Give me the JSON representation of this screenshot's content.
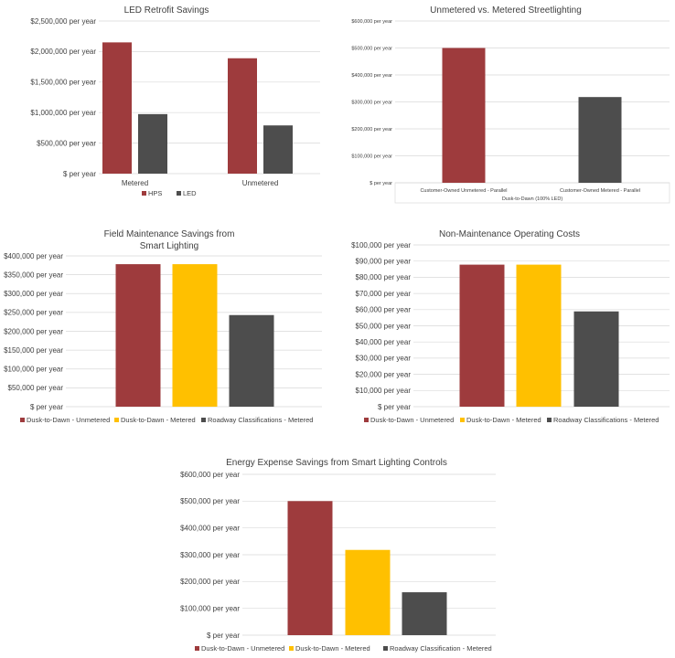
{
  "colors": {
    "red": "#9E3B3D",
    "gray": "#4D4D4D",
    "yellow": "#FFC000",
    "gridline": "#D9D9D9",
    "text": "#404040"
  },
  "chart_data": [
    {
      "type": "bar",
      "title": "LED Retrofit Savings",
      "categories": [
        "Metered",
        "Unmetered"
      ],
      "series": [
        {
          "name": "HPS",
          "color": "#9E3B3D",
          "values": [
            2150000,
            1890000
          ]
        },
        {
          "name": "LED",
          "color": "#4D4D4D",
          "values": [
            975000,
            790000
          ]
        }
      ],
      "ylim": [
        0,
        2500000
      ],
      "yticks": [
        "$ per year",
        "$500,000 per year",
        "$1,000,000 per year",
        "$1,500,000 per year",
        "$2,000,000 per year",
        "$2,500,000 per year"
      ],
      "xlabel": "",
      "legend": "bottom",
      "grid": true
    },
    {
      "type": "bar",
      "title": "Unmetered vs. Metered Streetlighting",
      "categories": [
        "Customer-Owned Unmetered - Parallel",
        "Customer-Owned Metered - Parallel"
      ],
      "series": [
        {
          "name": "",
          "colors": [
            "#9E3B3D",
            "#4D4D4D"
          ],
          "values": [
            500000,
            318000
          ]
        }
      ],
      "ylim": [
        0,
        600000
      ],
      "yticks": [
        "$ per year",
        "$100,000 per year",
        "$200,000 per year",
        "$300,000 per year",
        "$400,000 per year",
        "$500,000 per year",
        "$600,000 per year"
      ],
      "xlabel": "Dusk-to-Dawn (100% LED)",
      "legend": "none",
      "grid": true
    },
    {
      "type": "bar",
      "title": [
        "Field Maintenance Savings from",
        "Smart Lighting"
      ],
      "categories": [
        ""
      ],
      "series": [
        {
          "name": "Dusk-to-Dawn - Unmetered",
          "color": "#9E3B3D",
          "values": [
            378000
          ]
        },
        {
          "name": "Dusk-to-Dawn - Metered",
          "color": "#FFC000",
          "values": [
            378000
          ]
        },
        {
          "name": "Roadway Classifications - Metered",
          "color": "#4D4D4D",
          "values": [
            243000
          ]
        }
      ],
      "ylim": [
        0,
        400000
      ],
      "yticks": [
        "$ per year",
        "$50,000 per year",
        "$100,000 per year",
        "$150,000 per year",
        "$200,000 per year",
        "$250,000 per year",
        "$300,000 per year",
        "$350,000 per year",
        "$400,000 per year"
      ],
      "xlabel": "",
      "legend": "bottom",
      "grid": true
    },
    {
      "type": "bar",
      "title": "Non-Maintenance Operating Costs",
      "categories": [
        ""
      ],
      "series": [
        {
          "name": "Dusk-to-Dawn - Unmetered",
          "color": "#9E3B3D",
          "values": [
            87800
          ]
        },
        {
          "name": "Dusk-to-Dawn - Metered",
          "color": "#FFC000",
          "values": [
            87800
          ]
        },
        {
          "name": "Roadway Classifications - Metered",
          "color": "#4D4D4D",
          "values": [
            58900
          ]
        }
      ],
      "ylim": [
        0,
        100000
      ],
      "yticks": [
        "$ per year",
        "$10,000 per year",
        "$20,000 per year",
        "$30,000 per year",
        "$40,000 per year",
        "$50,000 per year",
        "$60,000 per year",
        "$70,000 per year",
        "$80,000 per year",
        "$90,000 per year",
        "$100,000 per year"
      ],
      "xlabel": "",
      "legend": "bottom",
      "grid": true
    },
    {
      "type": "bar",
      "title": "Energy Expense Savings from Smart Lighting Controls",
      "categories": [
        ""
      ],
      "series": [
        {
          "name": "Dusk-to-Dawn - Unmetered",
          "color": "#9E3B3D",
          "values": [
            500000
          ]
        },
        {
          "name": "Dusk-to-Dawn - Metered",
          "color": "#FFC000",
          "values": [
            318000
          ]
        },
        {
          "name": "Roadway Classification - Metered",
          "color": "#4D4D4D",
          "values": [
            160000
          ]
        }
      ],
      "ylim": [
        0,
        600000
      ],
      "yticks": [
        "$ per year",
        "$100,000 per year",
        "$200,000 per year",
        "$300,000 per year",
        "$400,000 per year",
        "$500,000 per year",
        "$600,000 per year"
      ],
      "xlabel": "",
      "legend": "bottom",
      "grid": true
    }
  ]
}
